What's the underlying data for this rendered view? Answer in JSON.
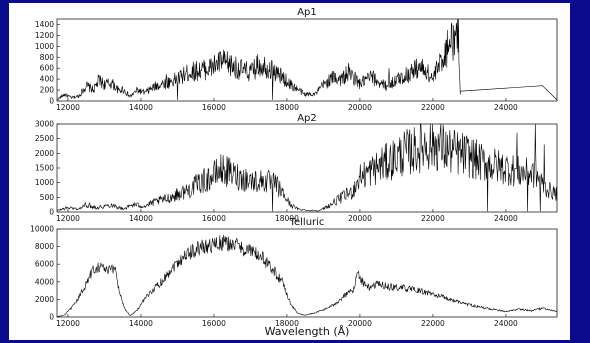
{
  "chart_data": [
    {
      "type": "line",
      "title": "Ap1",
      "xlim": [
        11700,
        25400
      ],
      "ylim": [
        0,
        1500
      ],
      "xticks": [
        12000,
        14000,
        16000,
        18000,
        20000,
        22000,
        24000
      ],
      "yticks": [
        0,
        200,
        400,
        600,
        800,
        1000,
        1200,
        1400
      ],
      "series": [
        {
          "profile": [
            [
              11700,
              20
            ],
            [
              11900,
              120
            ],
            [
              12100,
              60
            ],
            [
              12300,
              90
            ],
            [
              12500,
              280
            ],
            [
              12700,
              200
            ],
            [
              12850,
              380
            ],
            [
              13000,
              300
            ],
            [
              13200,
              330
            ],
            [
              13400,
              180
            ],
            [
              13500,
              220
            ],
            [
              13700,
              80
            ],
            [
              13900,
              200
            ],
            [
              14100,
              150
            ],
            [
              14300,
              230
            ],
            [
              14500,
              300
            ],
            [
              14700,
              330
            ],
            [
              15000,
              400
            ],
            [
              15300,
              520
            ],
            [
              15600,
              560
            ],
            [
              15900,
              600
            ],
            [
              16200,
              720
            ],
            [
              16500,
              640
            ],
            [
              16800,
              560
            ],
            [
              17000,
              520
            ],
            [
              17300,
              680
            ],
            [
              17600,
              560
            ],
            [
              17900,
              420
            ],
            [
              18100,
              300
            ],
            [
              18300,
              210
            ],
            [
              18500,
              120
            ],
            [
              18800,
              140
            ],
            [
              19000,
              300
            ],
            [
              19300,
              440
            ],
            [
              19500,
              400
            ],
            [
              19700,
              520
            ],
            [
              19900,
              380
            ],
            [
              20000,
              310
            ],
            [
              20300,
              440
            ],
            [
              20500,
              360
            ],
            [
              20700,
              280
            ],
            [
              20900,
              340
            ],
            [
              21100,
              420
            ],
            [
              21300,
              480
            ],
            [
              21600,
              620
            ],
            [
              21800,
              560
            ],
            [
              22000,
              400
            ],
            [
              22200,
              700
            ],
            [
              22350,
              900
            ],
            [
              22500,
              1050
            ],
            [
              22600,
              1150
            ],
            [
              22700,
              1250
            ],
            [
              22750,
              160
            ]
          ],
          "spikes": [
            [
              15000,
              20
            ],
            [
              17600,
              20
            ],
            [
              17200,
              860
            ],
            [
              14700,
              490
            ],
            [
              20800,
              600
            ],
            [
              22500,
              1400
            ],
            [
              22650,
              1380
            ],
            [
              22400,
              1300
            ]
          ],
          "noise": 0.35,
          "tail": [
            [
              22750,
              180
            ],
            [
              25000,
              280
            ],
            [
              25400,
              20
            ]
          ]
        }
      ]
    },
    {
      "type": "line",
      "title": "Ap2",
      "xlim": [
        11700,
        25400
      ],
      "ylim": [
        0,
        3000
      ],
      "xticks": [
        12000,
        14000,
        16000,
        18000,
        20000,
        22000,
        24000
      ],
      "yticks": [
        0,
        500,
        1000,
        1500,
        2000,
        2500,
        3000
      ],
      "series": [
        {
          "profile": [
            [
              11700,
              50
            ],
            [
              12000,
              150
            ],
            [
              12300,
              100
            ],
            [
              12500,
              250
            ],
            [
              12800,
              150
            ],
            [
              13200,
              250
            ],
            [
              13500,
              100
            ],
            [
              13800,
              250
            ],
            [
              14100,
              200
            ],
            [
              14400,
              350
            ],
            [
              14700,
              450
            ],
            [
              15000,
              600
            ],
            [
              15300,
              750
            ],
            [
              15600,
              1000
            ],
            [
              15900,
              1150
            ],
            [
              16200,
              1450
            ],
            [
              16500,
              1300
            ],
            [
              16800,
              1150
            ],
            [
              17100,
              1050
            ],
            [
              17400,
              1050
            ],
            [
              17700,
              950
            ],
            [
              17900,
              600
            ],
            [
              18100,
              250
            ],
            [
              18300,
              100
            ],
            [
              18600,
              50
            ],
            [
              18900,
              50
            ],
            [
              19200,
              250
            ],
            [
              19500,
              500
            ],
            [
              19800,
              700
            ],
            [
              20000,
              1200
            ],
            [
              20300,
              1400
            ],
            [
              20600,
              1600
            ],
            [
              20900,
              1800
            ],
            [
              21200,
              2000
            ],
            [
              21500,
              2100
            ],
            [
              21800,
              2300
            ],
            [
              22100,
              2300
            ],
            [
              22400,
              2100
            ],
            [
              22700,
              2000
            ],
            [
              23000,
              1900
            ],
            [
              23300,
              1700
            ],
            [
              23600,
              1600
            ],
            [
              24000,
              1500
            ],
            [
              24400,
              1350
            ],
            [
              24800,
              1300
            ],
            [
              25100,
              800
            ],
            [
              25400,
              600
            ]
          ],
          "spikes": [
            [
              17600,
              20
            ],
            [
              23500,
              20
            ],
            [
              24300,
              2700
            ],
            [
              24600,
              20
            ],
            [
              24800,
              3000
            ],
            [
              24950,
              20
            ],
            [
              25050,
              2300
            ],
            [
              20600,
              2200
            ]
          ],
          "noise": 0.4,
          "tail": []
        }
      ]
    },
    {
      "type": "line",
      "title": "Telluric",
      "xlim": [
        11700,
        25400
      ],
      "ylim": [
        0,
        10000
      ],
      "xticks": [
        12000,
        14000,
        16000,
        18000,
        20000,
        22000,
        24000
      ],
      "yticks": [
        0,
        2000,
        4000,
        6000,
        8000,
        10000
      ],
      "series": [
        {
          "profile": [
            [
              11700,
              50
            ],
            [
              11900,
              200
            ],
            [
              12200,
              1500
            ],
            [
              12500,
              3800
            ],
            [
              12700,
              5500
            ],
            [
              12900,
              5800
            ],
            [
              13100,
              5200
            ],
            [
              13300,
              5600
            ],
            [
              13400,
              3000
            ],
            [
              13550,
              1000
            ],
            [
              13700,
              150
            ],
            [
              13900,
              800
            ],
            [
              14100,
              2000
            ],
            [
              14300,
              3000
            ],
            [
              14600,
              4200
            ],
            [
              14900,
              5800
            ],
            [
              15200,
              7000
            ],
            [
              15500,
              7700
            ],
            [
              15800,
              8100
            ],
            [
              16100,
              8300
            ],
            [
              16400,
              8400
            ],
            [
              16700,
              8000
            ],
            [
              17000,
              7500
            ],
            [
              17300,
              6800
            ],
            [
              17600,
              5500
            ],
            [
              17900,
              3800
            ],
            [
              18100,
              1500
            ],
            [
              18300,
              400
            ],
            [
              18500,
              200
            ],
            [
              18800,
              500
            ],
            [
              19100,
              1000
            ],
            [
              19300,
              1400
            ],
            [
              19600,
              2500
            ],
            [
              19800,
              3000
            ],
            [
              19950,
              5000
            ],
            [
              20100,
              3800
            ],
            [
              20300,
              3200
            ],
            [
              20500,
              3800
            ],
            [
              20800,
              3400
            ],
            [
              21200,
              3300
            ],
            [
              21600,
              3000
            ],
            [
              22000,
              2600
            ],
            [
              22400,
              2100
            ],
            [
              22800,
              1600
            ],
            [
              23200,
              1200
            ],
            [
              23600,
              900
            ],
            [
              24000,
              600
            ],
            [
              24400,
              900
            ],
            [
              24700,
              700
            ],
            [
              25000,
              1000
            ],
            [
              25300,
              700
            ],
            [
              25400,
              600
            ]
          ],
          "spikes": [],
          "noise": 0.12,
          "tail": []
        }
      ],
      "xlabel": "Wavelength (Å)"
    }
  ]
}
